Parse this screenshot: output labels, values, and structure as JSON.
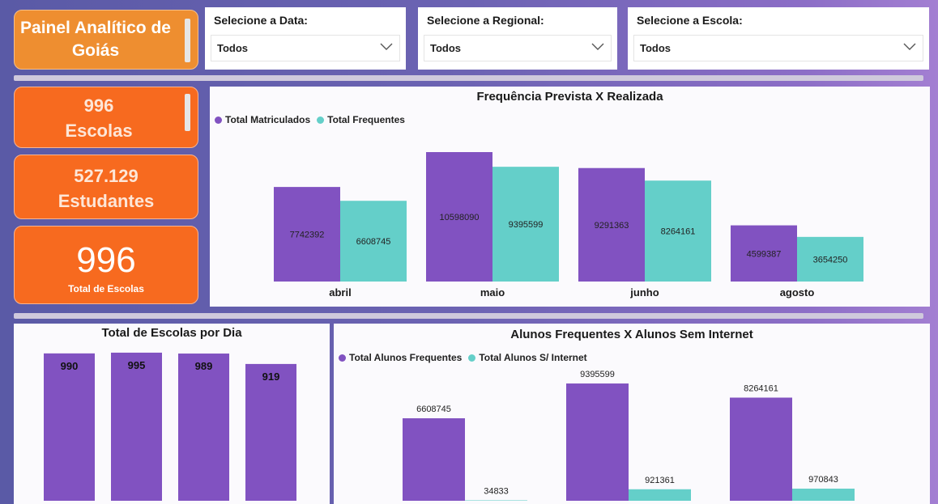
{
  "header": {
    "title": "Painel Analítico de Goiás"
  },
  "filters": [
    {
      "label": "Selecione a Data:",
      "value": "Todos"
    },
    {
      "label": "Selecione a Regional:",
      "value": "Todos"
    },
    {
      "label": "Selecione a Escola:",
      "value": "Todos"
    }
  ],
  "kpis": {
    "escolas_value": "996",
    "escolas_label": "Escolas",
    "estudantes_value": "527.129",
    "estudantes_label": "Estudantes",
    "total_value": "996",
    "total_label": "Total de Escolas"
  },
  "colors": {
    "purple": "#8152c1",
    "teal": "#64cfc9",
    "orange": "#f76a1f"
  },
  "chart_data": [
    {
      "type": "bar",
      "title": "Frequência Prevista X Realizada",
      "categories": [
        "abril",
        "maio",
        "junho",
        "agosto"
      ],
      "series": [
        {
          "name": "Total Matriculados",
          "values": [
            7742392,
            10598090,
            9291363,
            4599387
          ]
        },
        {
          "name": "Total Frequentes",
          "values": [
            6608745,
            9395599,
            8264161,
            3654250
          ]
        }
      ],
      "ylim": [
        0,
        10598090
      ],
      "legend": "top-left"
    },
    {
      "type": "bar",
      "title": "Total de Escolas por Dia",
      "categories": [
        "",
        "",
        "",
        ""
      ],
      "series": [
        {
          "values": [
            990,
            995,
            989,
            919
          ]
        }
      ],
      "ylim": [
        0,
        1000
      ]
    },
    {
      "type": "bar",
      "title": "Alunos Frequentes X Alunos Sem Internet",
      "categories": [
        "",
        "",
        ""
      ],
      "series": [
        {
          "name": "Total Alunos Frequentes",
          "values": [
            6608745,
            9395599,
            8264161
          ]
        },
        {
          "name": "Total Alunos S/ Internet",
          "values": [
            34833,
            921361,
            970843
          ]
        }
      ],
      "ylim": [
        0,
        10500000
      ],
      "legend": "top-left"
    }
  ]
}
